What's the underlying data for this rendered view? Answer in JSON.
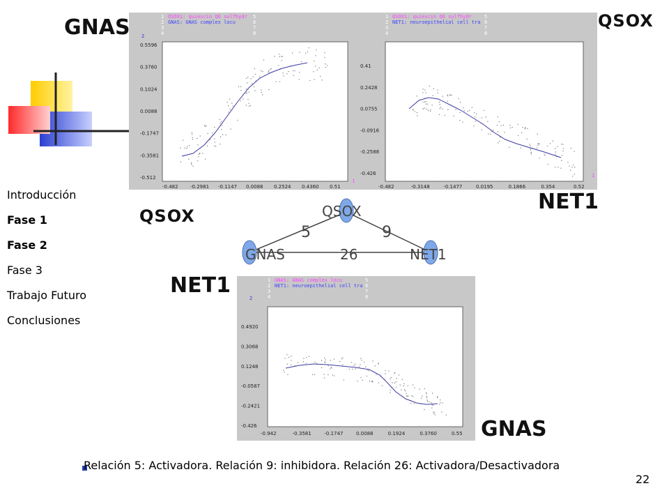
{
  "labels": {
    "gnas_top": "GNAS",
    "qsox_top": "QSOX",
    "net1_right": "NET1",
    "qsox_mid": "QSOX",
    "net1_mid": "NET1",
    "gnas_bottom": "GNAS"
  },
  "nav": [
    "Introducción",
    "Fase 1",
    "Fase 2",
    "Fase 3",
    "Trabajo Futuro",
    "Conclusiones"
  ],
  "graph": {
    "node_top": "QSOX",
    "node_left": "GNAS",
    "node_right": "NET1",
    "edge_left": "5",
    "edge_right": "9",
    "edge_bottom": "26",
    "node_color": "#7fa8e8"
  },
  "plot1": {
    "legend": [
      "1",
      "QSOX1: quiescin Q6 sulfhydr",
      "5",
      "2",
      "GNAS: GNAS complex locu",
      "6",
      "3",
      "7",
      "4",
      "8"
    ],
    "corner": "2",
    "yticks": [
      "0.5596",
      "0.3760",
      "0.1024",
      "0.0088",
      "-0.1747",
      "-0.3581",
      "-0.512"
    ],
    "xticks": [
      "-0.482",
      "-0.2981",
      "-0.1147",
      "0.0088",
      "0.2524",
      "0.4360",
      "0.51"
    ],
    "xvar": "x1"
  },
  "plot2": {
    "legend": [
      "1",
      "QSOX1: quiescin Q6 sulfhydr",
      "5",
      "2",
      "NET1: neuroepithelial cell tra",
      "6",
      "3",
      "7",
      "4",
      "8"
    ],
    "yticks": [
      "0.41",
      "0.2428",
      "0.0755",
      "-0.0916",
      "-0.2588",
      "-0.426"
    ],
    "xticks": [
      "-0.482",
      "-0.3148",
      "-0.1477",
      "0.0195",
      "0.1866",
      "0.354",
      "0.52"
    ],
    "corner_left": "1",
    "corner_right": "1"
  },
  "plot3": {
    "legend": [
      "1",
      "GNAS: GNAS complex locu",
      "5",
      "2",
      "NET1: neuroepithelial cell tra",
      "6",
      "3",
      "7",
      "4",
      "8"
    ],
    "corner": "2",
    "yticks": [
      "0.4920",
      "0.3068",
      "0.1248",
      "-0.0587",
      "-0.2421",
      "-0.426"
    ],
    "xticks": [
      "-0.942",
      "-0.3581",
      "-0.1747",
      "0.0088",
      "0.1924",
      "0.3760",
      "0.55"
    ]
  },
  "footer": "Relación 5: Activadora. Relación 9: inhibidora. Relación 26: Activadora/Desactivadora",
  "page_number": "22",
  "colors": {
    "logo_yellow": "#ffcc00",
    "logo_red": "#ff2a2a",
    "logo_blue": "#2a3fd0",
    "bullet": "#1f3fa8",
    "curve": "#3a3aa0"
  }
}
